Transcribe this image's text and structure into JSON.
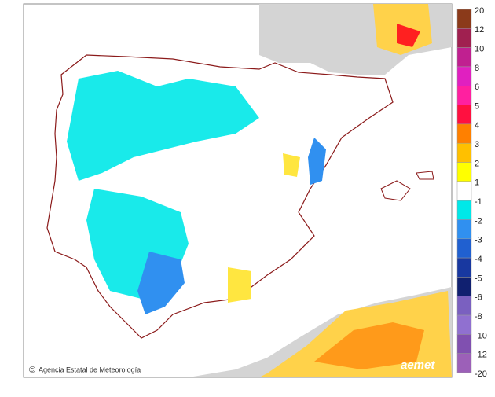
{
  "map": {
    "legend": {
      "labels": [
        "20",
        "12",
        "10",
        "8",
        "6",
        "5",
        "4",
        "3",
        "2",
        "1",
        "-1",
        "-2",
        "-3",
        "-4",
        "-5",
        "-6",
        "-8",
        "-10",
        "-12",
        "-20"
      ],
      "colors": [
        "#8b3a1a",
        "#a02050",
        "#c02090",
        "#e020c0",
        "#ff20a0",
        "#ff1040",
        "#ff8000",
        "#ffc000",
        "#ffff00",
        "#ffffff",
        "#00e8e8",
        "#3090f0",
        "#2060d0",
        "#1838a0",
        "#102070",
        "#7a60c0",
        "#9070d0",
        "#8050b0",
        "#9c60b8"
      ]
    },
    "copyright": "©",
    "attribution": "Agencia Estatal de Meteorología",
    "logo": "aemet"
  }
}
